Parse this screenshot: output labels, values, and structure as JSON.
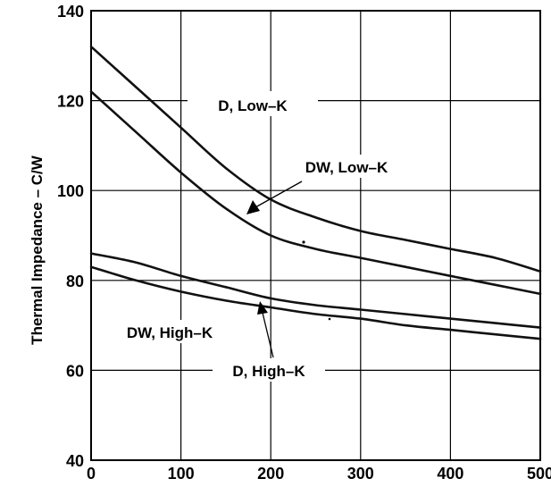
{
  "chart_data": {
    "type": "line",
    "title": "",
    "xlabel": "",
    "ylabel": "Thermal Impedance – C/W",
    "xlim": [
      0,
      500
    ],
    "ylim": [
      40,
      140
    ],
    "grid": true,
    "x_ticks": [
      0,
      100,
      200,
      300,
      400,
      500
    ],
    "y_ticks": [
      40,
      60,
      80,
      100,
      120,
      140
    ],
    "series": [
      {
        "name": "D, Low–K",
        "x": [
          0,
          50,
          100,
          150,
          200,
          250,
          300,
          350,
          400,
          450,
          500
        ],
        "values": [
          132,
          123,
          114,
          105,
          98,
          94,
          91,
          89,
          87,
          85,
          82
        ]
      },
      {
        "name": "DW, Low–K",
        "x": [
          0,
          50,
          100,
          150,
          200,
          250,
          300,
          350,
          400,
          450,
          500
        ],
        "values": [
          122,
          113,
          104,
          96,
          90,
          87,
          85,
          83,
          81,
          79,
          77
        ]
      },
      {
        "name": "DW, High–K",
        "x": [
          0,
          50,
          100,
          150,
          200,
          250,
          300,
          350,
          400,
          450,
          500
        ],
        "values": [
          86,
          84,
          81,
          78.5,
          76,
          74.5,
          73.5,
          72.5,
          71.5,
          70.5,
          69.5
        ]
      },
      {
        "name": "D, High–K",
        "x": [
          0,
          50,
          100,
          150,
          200,
          250,
          300,
          350,
          400,
          450,
          500
        ],
        "values": [
          83,
          80,
          77.5,
          75.5,
          74,
          72.5,
          71.5,
          70,
          69,
          68,
          67
        ]
      }
    ],
    "annotations": [
      {
        "text": "D, Low–K"
      },
      {
        "text": "DW, Low–K"
      },
      {
        "text": "DW, High–K"
      },
      {
        "text": "D, High–K"
      }
    ]
  }
}
